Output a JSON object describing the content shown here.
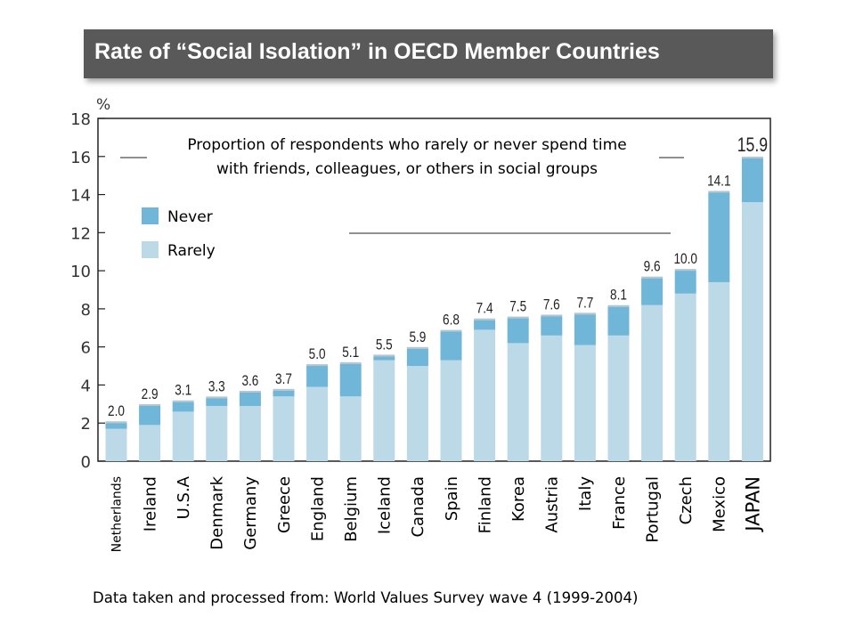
{
  "title": "Rate of “Social Isolation” in OECD Member Countries",
  "source": "Data taken and processed from: World Values Survey wave 4 (1999-2004)",
  "colors": {
    "never": "#6fb6d8",
    "rarely": "#bcd9e8",
    "title_bg": "#595959"
  },
  "chart_data": {
    "type": "bar",
    "stacked": true,
    "annotation_lines": [
      "Proportion of respondents who rarely or never spend time",
      "with friends, colleagues, or others in social groups"
    ],
    "y_unit": "%",
    "ylim": [
      0,
      18
    ],
    "y_ticks": [
      "0",
      "2",
      "4",
      "6",
      "8",
      "10",
      "12",
      "14",
      "16",
      "18"
    ],
    "grid": false,
    "legend_position": "top-left",
    "categories": [
      "Netherlands",
      "Ireland",
      "U.S.A",
      "Denmark",
      "Germany",
      "Greece",
      "England",
      "Belgium",
      "Iceland",
      "Canada",
      "Spain",
      "Finland",
      "Korea",
      "Austria",
      "Italy",
      "France",
      "Portugal",
      "Czech",
      "Mexico",
      "JAPAN"
    ],
    "series": [
      {
        "name": "Rarely",
        "values": [
          1.7,
          1.9,
          2.6,
          2.9,
          2.9,
          3.4,
          3.9,
          3.4,
          5.3,
          5.0,
          5.3,
          6.9,
          6.2,
          6.6,
          6.1,
          6.6,
          8.2,
          8.8,
          9.4,
          13.6
        ]
      },
      {
        "name": "Never",
        "values": [
          0.3,
          1.0,
          0.5,
          0.4,
          0.7,
          0.3,
          1.1,
          1.7,
          0.2,
          0.9,
          1.5,
          0.5,
          1.3,
          1.0,
          1.6,
          1.5,
          1.4,
          1.2,
          4.7,
          2.3
        ]
      }
    ],
    "totals": [
      "2.0",
      "2.9",
      "3.1",
      "3.3",
      "3.6",
      "3.7",
      "5.0",
      "5.1",
      "5.5",
      "5.9",
      "6.8",
      "7.4",
      "7.5",
      "7.6",
      "7.7",
      "8.1",
      "9.6",
      "10.0",
      "14.1",
      "15.9"
    ],
    "legend": [
      {
        "label": "Never",
        "color": "#6fb6d8"
      },
      {
        "label": "Rarely",
        "color": "#bcd9e8"
      }
    ]
  }
}
